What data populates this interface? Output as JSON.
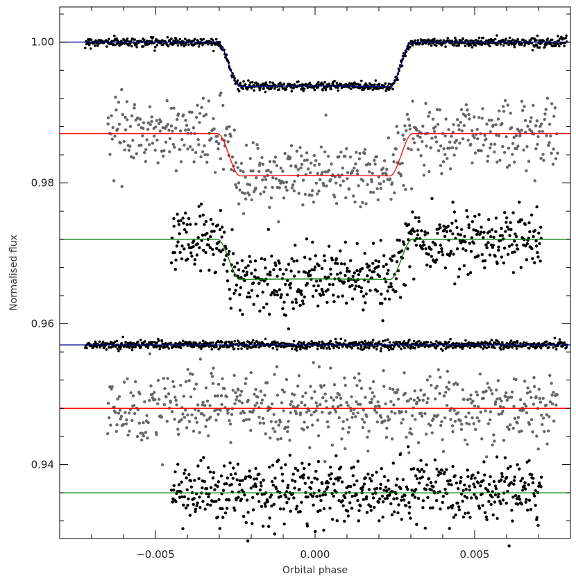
{
  "chart_data": {
    "type": "scatter",
    "title": "",
    "xlabel": "Orbital phase",
    "ylabel": "Normalised flux",
    "xlim": [
      -0.008,
      0.008
    ],
    "ylim": [
      0.9295,
      1.005
    ],
    "x_ticks": [
      -0.005,
      0.0,
      0.005
    ],
    "x_tick_labels": [
      "−0.005",
      "0.000",
      "0.005"
    ],
    "y_ticks": [
      0.94,
      0.96,
      0.98,
      1.0
    ],
    "y_tick_labels": [
      "0.94",
      "0.96",
      "0.98",
      "1.00"
    ],
    "grid": false,
    "legend": "none",
    "series": [
      {
        "kind": "light_curve",
        "marker_color": "#000000",
        "model_color": "#00008b",
        "phase_range": [
          -0.0072,
          0.0079
        ],
        "baseline": 1.0,
        "depth": 0.0063,
        "t14": 0.0061,
        "t12": 0.0007,
        "scatter": 0.0003
      },
      {
        "kind": "light_curve",
        "marker_color": "#666666",
        "model_color": "#ff0000",
        "phase_range": [
          -0.0065,
          0.0076
        ],
        "baseline": 0.987,
        "depth": 0.006,
        "t14": 0.0061,
        "t12": 0.0007,
        "scatter": 0.0025
      },
      {
        "kind": "light_curve",
        "marker_color": "#000000",
        "model_color": "#008000",
        "phase_range": [
          -0.0045,
          0.0071
        ],
        "baseline": 0.972,
        "depth": 0.0057,
        "t14": 0.0061,
        "t12": 0.0007,
        "scatter": 0.0022
      },
      {
        "kind": "residuals",
        "marker_color": "#000000",
        "model_color": "#00008b",
        "phase_range": [
          -0.0072,
          0.0079
        ],
        "baseline": 0.957,
        "scatter": 0.0003
      },
      {
        "kind": "residuals",
        "marker_color": "#666666",
        "model_color": "#ff0000",
        "phase_range": [
          -0.0065,
          0.0076
        ],
        "baseline": 0.948,
        "scatter": 0.0025
      },
      {
        "kind": "residuals",
        "marker_color": "#000000",
        "model_color": "#008000",
        "phase_range": [
          -0.0045,
          0.0071
        ],
        "baseline": 0.936,
        "scatter": 0.0022
      }
    ]
  }
}
